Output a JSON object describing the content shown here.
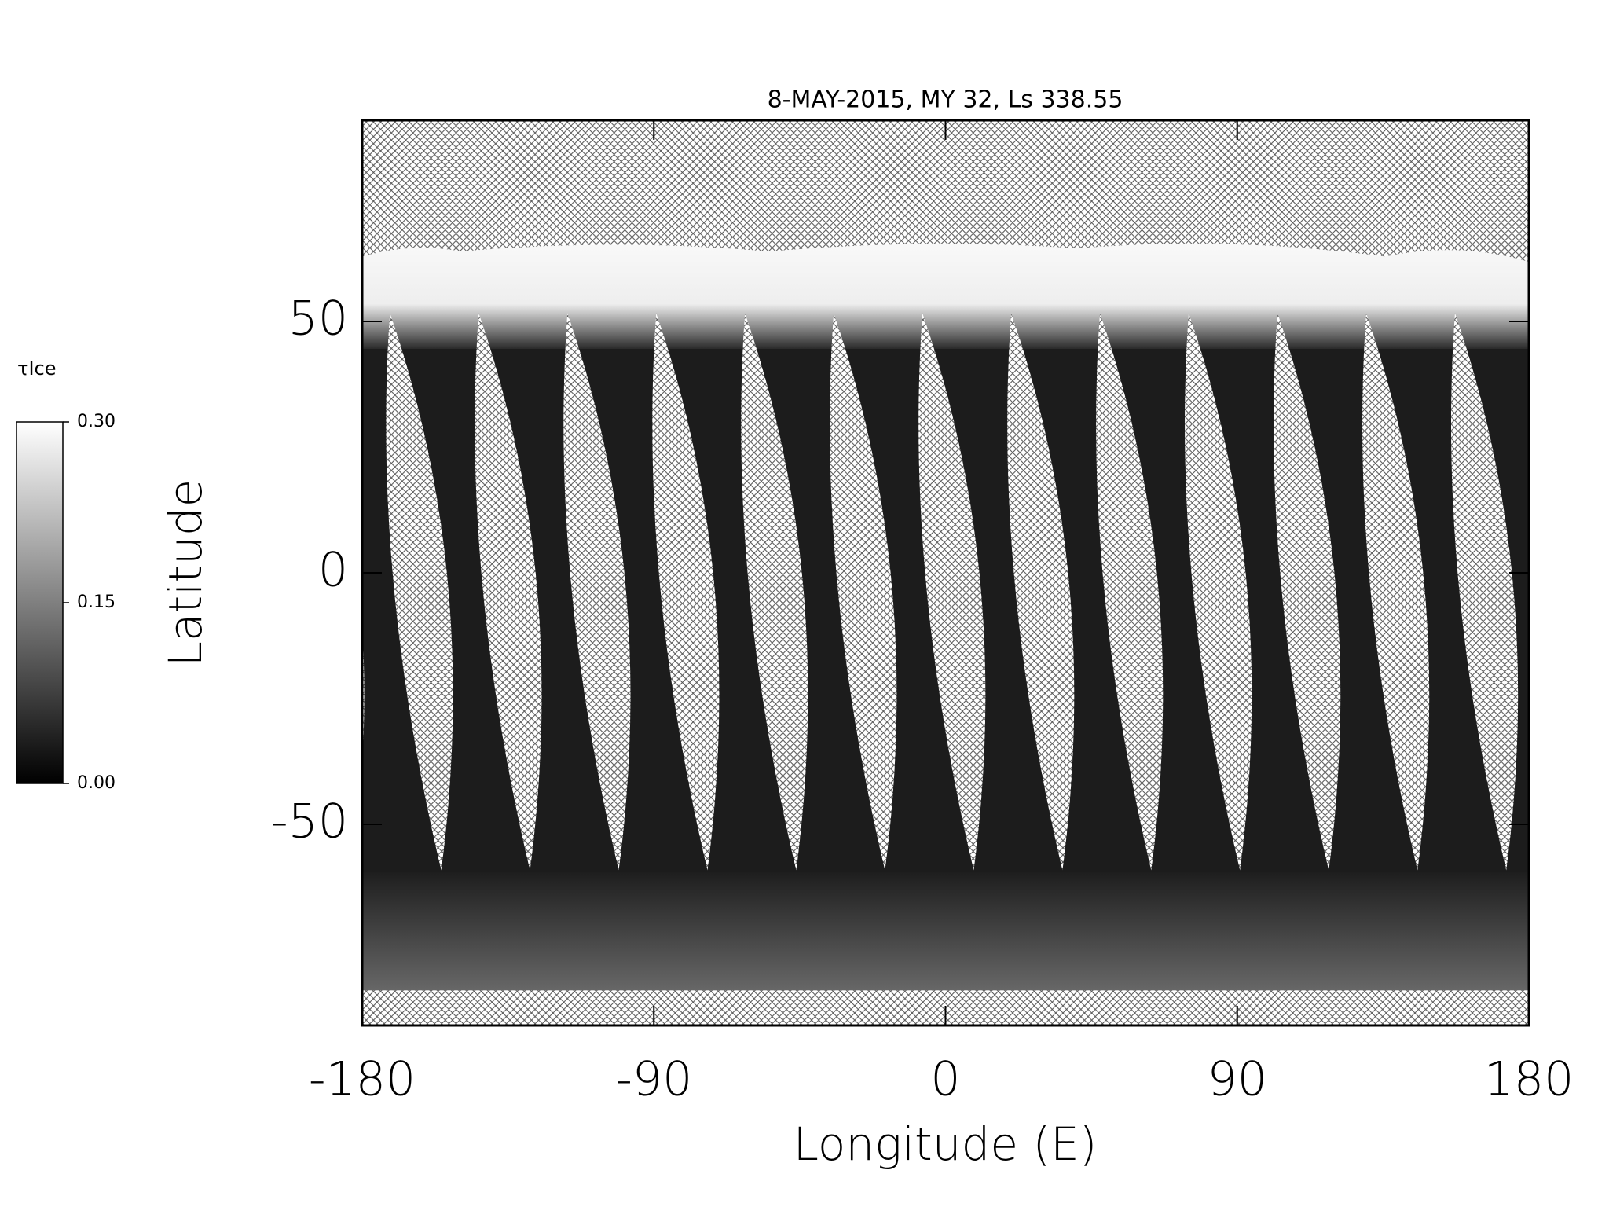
{
  "chart_data": {
    "type": "map",
    "title": "8-MAY-2015, MY 32,  Ls 338.55",
    "xlabel": "Longitude (E)",
    "ylabel": "Latitude",
    "xlim": [
      -180,
      180
    ],
    "xticks": [
      -180,
      -90,
      0,
      90,
      180
    ],
    "ylim": [
      -90,
      90
    ],
    "yticks": [
      -50,
      0,
      50
    ],
    "colorbar": {
      "label": "τIce",
      "lim": [
        0,
        0.3
      ],
      "ticks": [
        {
          "value": 0,
          "label": "0.00"
        },
        {
          "value": 0.15,
          "label": "0.15"
        },
        {
          "value": 0.3,
          "label": "0.30"
        }
      ],
      "colors": [
        "#000000",
        "#ffffff"
      ]
    }
  }
}
